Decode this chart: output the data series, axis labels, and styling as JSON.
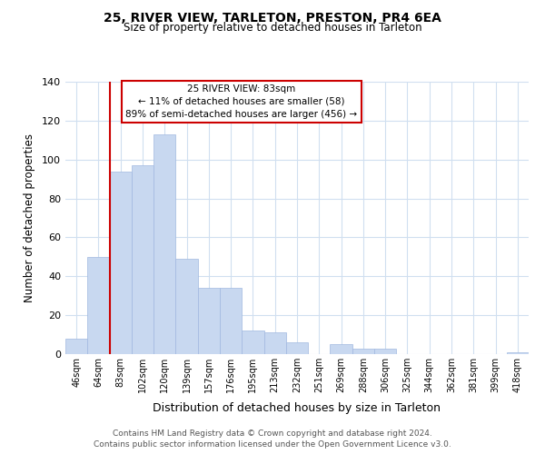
{
  "title": "25, RIVER VIEW, TARLETON, PRESTON, PR4 6EA",
  "subtitle": "Size of property relative to detached houses in Tarleton",
  "xlabel": "Distribution of detached houses by size in Tarleton",
  "ylabel": "Number of detached properties",
  "bar_labels": [
    "46sqm",
    "64sqm",
    "83sqm",
    "102sqm",
    "120sqm",
    "139sqm",
    "157sqm",
    "176sqm",
    "195sqm",
    "213sqm",
    "232sqm",
    "251sqm",
    "269sqm",
    "288sqm",
    "306sqm",
    "325sqm",
    "344sqm",
    "362sqm",
    "381sqm",
    "399sqm",
    "418sqm"
  ],
  "bar_values": [
    8,
    50,
    94,
    97,
    113,
    49,
    34,
    34,
    12,
    11,
    6,
    0,
    5,
    3,
    3,
    0,
    0,
    0,
    0,
    0,
    1
  ],
  "bar_color": "#c8d8f0",
  "bar_edge_color": "#a0b8e0",
  "vline_index": 2,
  "vline_color": "#cc0000",
  "annotation_title": "25 RIVER VIEW: 83sqm",
  "annotation_line1": "← 11% of detached houses are smaller (58)",
  "annotation_line2": "89% of semi-detached houses are larger (456) →",
  "annotation_box_color": "#ffffff",
  "annotation_box_edge": "#cc0000",
  "ylim": [
    0,
    140
  ],
  "yticks": [
    0,
    20,
    40,
    60,
    80,
    100,
    120,
    140
  ],
  "footer1": "Contains HM Land Registry data © Crown copyright and database right 2024.",
  "footer2": "Contains public sector information licensed under the Open Government Licence v3.0.",
  "background_color": "#ffffff",
  "grid_color": "#d0dff0"
}
